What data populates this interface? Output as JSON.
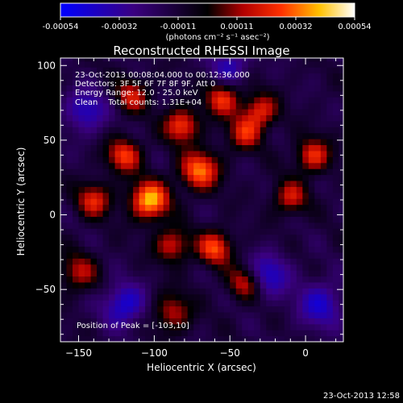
{
  "chart_data": {
    "type": "heatmap",
    "title": "Reconstructed RHESSI Image",
    "xlabel": "Heliocentric X (arcsec)",
    "ylabel": "Heliocentric Y (arcsec)",
    "xlim": [
      -162,
      25
    ],
    "ylim": [
      -85,
      105
    ],
    "xticks": [
      -150,
      -100,
      -50,
      0
    ],
    "yticks": [
      -50,
      0,
      50,
      100
    ],
    "colorbar": {
      "ticks": [
        "-0.00054",
        "-0.00032",
        "-0.00011",
        "0.00011",
        "0.00032",
        "0.00054"
      ],
      "range": [
        -0.00054,
        0.00054
      ],
      "units_label": "(photons cm⁻² s⁻¹ asec⁻²)",
      "colormap": [
        "#0000ff",
        "#000000",
        "#ff0000",
        "#ffff00",
        "#ffffff"
      ]
    },
    "info_lines": [
      "23-Oct-2013 00:08:04.000 to 00:12:36.000",
      "Detectors: 3F 5F 6F 7F 8F 9F, Att 0",
      "Energy Range: 12.0 - 25.0 keV",
      "Clean    Total counts: 1.31E+04"
    ],
    "peak_label": "Position of Peak = [-103,10]",
    "peak": [
      -103,
      10
    ],
    "blobs": [
      {
        "x": -103,
        "y": 10,
        "amp": 0.00054,
        "s": 9
      },
      {
        "x": -70,
        "y": 30,
        "amp": 0.00046,
        "s": 9
      },
      {
        "x": -82,
        "y": 60,
        "amp": 0.0004,
        "s": 8
      },
      {
        "x": -120,
        "y": 40,
        "amp": 0.00038,
        "s": 8
      },
      {
        "x": -140,
        "y": 10,
        "amp": 0.00034,
        "s": 8
      },
      {
        "x": -60,
        "y": -22,
        "amp": 0.0004,
        "s": 8
      },
      {
        "x": -88,
        "y": -20,
        "amp": 0.00032,
        "s": 8
      },
      {
        "x": -55,
        "y": 78,
        "amp": 0.00036,
        "s": 8
      },
      {
        "x": -30,
        "y": 70,
        "amp": 0.00034,
        "s": 8
      },
      {
        "x": -115,
        "y": 80,
        "amp": 0.0003,
        "s": 8
      },
      {
        "x": 5,
        "y": 40,
        "amp": 0.00036,
        "s": 8
      },
      {
        "x": -10,
        "y": 12,
        "amp": 0.0003,
        "s": 8
      },
      {
        "x": -40,
        "y": -45,
        "amp": 0.00032,
        "s": 8
      },
      {
        "x": -88,
        "y": -65,
        "amp": 0.00028,
        "s": 9
      },
      {
        "x": -150,
        "y": -38,
        "amp": 0.00026,
        "s": 9
      },
      {
        "x": -40,
        "y": 55,
        "amp": 0.00032,
        "s": 8
      },
      {
        "x": -120,
        "y": -60,
        "amp": -0.00032,
        "s": 10
      },
      {
        "x": -25,
        "y": -40,
        "amp": -0.0003,
        "s": 10
      },
      {
        "x": -145,
        "y": 70,
        "amp": -0.00028,
        "s": 10
      },
      {
        "x": 10,
        "y": -60,
        "amp": -0.00028,
        "s": 11
      },
      {
        "x": -50,
        "y": 100,
        "amp": -0.00024,
        "s": 9
      }
    ]
  },
  "timestamp": "23-Oct-2013 12:58"
}
